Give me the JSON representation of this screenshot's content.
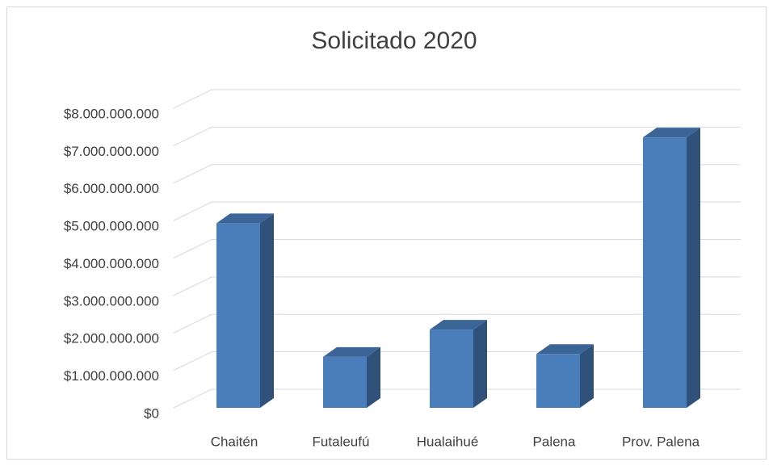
{
  "chart_data": {
    "type": "bar3d",
    "title": "Solicitado 2020",
    "categories": [
      "Chaitén",
      "Futaleufú",
      "Hualaihué",
      "Palena",
      "Prov. Palena"
    ],
    "values": [
      4930000000,
      1360000000,
      2090000000,
      1440000000,
      7220000000
    ],
    "color": "#4a7ebb",
    "ylim": [
      0,
      8000000000
    ],
    "yticks": [
      {
        "value": 0,
        "label": "$0"
      },
      {
        "value": 1000000000,
        "label": "$1.000.000.000"
      },
      {
        "value": 2000000000,
        "label": "$2.000.000.000"
      },
      {
        "value": 3000000000,
        "label": "$3.000.000.000"
      },
      {
        "value": 4000000000,
        "label": "$4.000.000.000"
      },
      {
        "value": 5000000000,
        "label": "$5.000.000.000"
      },
      {
        "value": 6000000000,
        "label": "$6.000.000.000"
      },
      {
        "value": 7000000000,
        "label": "$7.000.000.000"
      },
      {
        "value": 8000000000,
        "label": "$8.000.000.000"
      }
    ],
    "grid": true
  }
}
